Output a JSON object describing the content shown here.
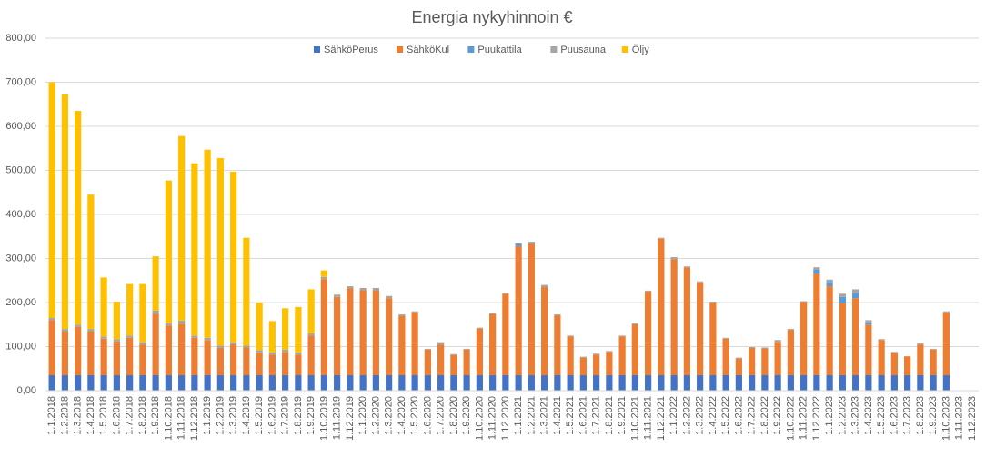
{
  "chart_data": {
    "type": "stacked_bar",
    "title": "Energia nykyhinnoin €",
    "categories": [
      "1.1.2018",
      "1.2.2018",
      "1.3.2018",
      "1.4.2018",
      "1.5.2018",
      "1.6.2018",
      "1.7.2018",
      "1.8.2018",
      "1.9.2018",
      "1.10.2018",
      "1.11.2018",
      "1.12.2018",
      "1.1.2019",
      "1.2.2019",
      "1.3.2019",
      "1.4.2019",
      "1.5.2019",
      "1.6.2019",
      "1.7.2019",
      "1.8.2019",
      "1.9.2019",
      "1.10.2019",
      "1.11.2019",
      "1.12.2019",
      "1.1.2020",
      "1.2.2020",
      "1.3.2020",
      "1.4.2020",
      "1.5.2020",
      "1.6.2020",
      "1.7.2020",
      "1.8.2020",
      "1.9.2020",
      "1.10.2020",
      "1.11.2020",
      "1.12.2020",
      "1.1.2021",
      "1.2.2021",
      "1.3.2021",
      "1.4.2021",
      "1.5.2021",
      "1.6.2021",
      "1.7.2021",
      "1.8.2021",
      "1.9.2021",
      "1.10.2021",
      "1.11.2021",
      "1.12.2021",
      "1.1.2022",
      "1.2.2022",
      "1.3.2022",
      "1.4.2022",
      "1.5.2022",
      "1.6.2022",
      "1.7.2022",
      "1.8.2022",
      "1.9.2022",
      "1.10.2022",
      "1.11.2022",
      "1.12.2022",
      "1.1.2023",
      "1.2.2023",
      "1.3.2023",
      "1.4.2023",
      "1.5.2023",
      "1.6.2023",
      "1.7.2023",
      "1.8.2023",
      "1.9.2023",
      "1.10.2023",
      "1.11.2023",
      "1.12.2023"
    ],
    "series": [
      {
        "name": "SähköPerus",
        "color": "#4472c4",
        "values": [
          35,
          35,
          35,
          35,
          35,
          35,
          35,
          35,
          35,
          35,
          35,
          35,
          35,
          35,
          35,
          35,
          35,
          35,
          35,
          35,
          35,
          35,
          35,
          35,
          35,
          35,
          35,
          35,
          35,
          35,
          35,
          35,
          35,
          35,
          35,
          35,
          35,
          35,
          35,
          35,
          35,
          35,
          35,
          35,
          35,
          35,
          35,
          35,
          35,
          35,
          35,
          35,
          35,
          35,
          35,
          35,
          35,
          35,
          35,
          35,
          35,
          35,
          35,
          35,
          35,
          35,
          35,
          35,
          35,
          35,
          null,
          null
        ]
      },
      {
        "name": "SähköKul",
        "color": "#ed7d31",
        "values": [
          125,
          100,
          110,
          100,
          83,
          77,
          85,
          70,
          140,
          113,
          117,
          85,
          80,
          62,
          70,
          63,
          52,
          47,
          53,
          47,
          90,
          218,
          178,
          197,
          193,
          193,
          175,
          135,
          143,
          58,
          70,
          46,
          58,
          106,
          139,
          185,
          293,
          298,
          200,
          136,
          88,
          40,
          47,
          53,
          88,
          116,
          190,
          310,
          263,
          245,
          211,
          165,
          83,
          38,
          62,
          61,
          76,
          103,
          166,
          230,
          202,
          163,
          175,
          115,
          80,
          51,
          43,
          70,
          58,
          143,
          null,
          null
        ]
      },
      {
        "name": "Puukattila",
        "color": "#5b9bd5",
        "values": [
          0,
          0,
          0,
          0,
          0,
          0,
          0,
          0,
          0,
          0,
          0,
          0,
          0,
          0,
          0,
          0,
          0,
          0,
          0,
          0,
          0,
          0,
          0,
          0,
          0,
          0,
          0,
          0,
          0,
          0,
          0,
          0,
          0,
          0,
          0,
          0,
          5,
          0,
          0,
          0,
          0,
          0,
          0,
          0,
          0,
          0,
          0,
          0,
          0,
          0,
          0,
          0,
          0,
          0,
          0,
          0,
          0,
          0,
          0,
          10,
          10,
          15,
          12,
          5,
          0,
          0,
          0,
          0,
          0,
          0,
          null,
          null
        ]
      },
      {
        "name": "Puusauna",
        "color": "#a5a5a5",
        "values": [
          5,
          5,
          5,
          5,
          5,
          5,
          5,
          5,
          7,
          5,
          7,
          5,
          5,
          5,
          5,
          4,
          5,
          5,
          5,
          5,
          5,
          5,
          5,
          5,
          5,
          5,
          5,
          3,
          2,
          2,
          5,
          2,
          2,
          2,
          2,
          2,
          2,
          5,
          5,
          2,
          2,
          2,
          2,
          2,
          2,
          2,
          2,
          2,
          5,
          2,
          2,
          2,
          2,
          2,
          2,
          2,
          4,
          2,
          2,
          5,
          5,
          7,
          8,
          5,
          2,
          2,
          0,
          2,
          2,
          2,
          null,
          null
        ]
      },
      {
        "name": "Öljy",
        "color": "#ffc000",
        "values": [
          535,
          532,
          485,
          305,
          134,
          85,
          117,
          132,
          123,
          324,
          419,
          391,
          427,
          426,
          387,
          245,
          108,
          71,
          94,
          103,
          100,
          15,
          0,
          0,
          0,
          0,
          0,
          0,
          0,
          0,
          0,
          0,
          0,
          0,
          0,
          0,
          0,
          0,
          0,
          0,
          0,
          0,
          0,
          0,
          0,
          0,
          0,
          0,
          0,
          0,
          0,
          0,
          0,
          0,
          0,
          0,
          0,
          0,
          0,
          0,
          0,
          0,
          0,
          0,
          0,
          0,
          0,
          0,
          0,
          0,
          null,
          null
        ]
      }
    ],
    "ylim": [
      0,
      800
    ],
    "yticks": [
      {
        "value": 0,
        "label": "0,00"
      },
      {
        "value": 100,
        "label": "100,00"
      },
      {
        "value": 200,
        "label": "200,00"
      },
      {
        "value": 300,
        "label": "300,00"
      },
      {
        "value": 400,
        "label": "400,00"
      },
      {
        "value": 500,
        "label": "500,00"
      },
      {
        "value": 600,
        "label": "600,00"
      },
      {
        "value": 700,
        "label": "700,00"
      },
      {
        "value": 800,
        "label": "800,00"
      }
    ],
    "grid": true,
    "legend": "top"
  }
}
